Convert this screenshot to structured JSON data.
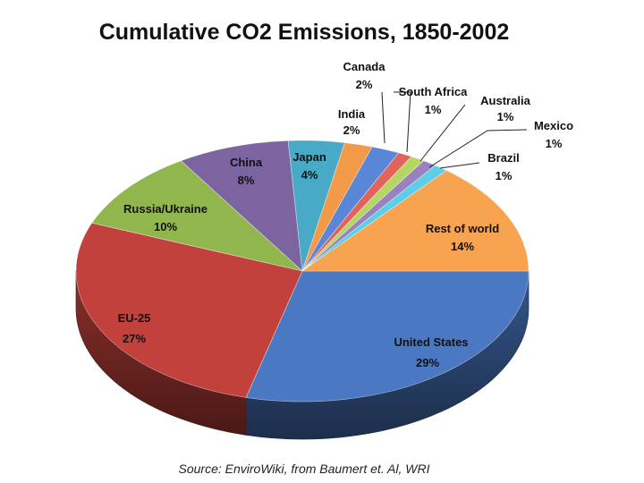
{
  "chart_data": {
    "type": "pie",
    "title": "Cumulative CO2 Emissions, 1850-2002",
    "source": "Source: EnviroWiki, from Baumert et. Al, WRI",
    "slices": [
      {
        "name": "United States",
        "pct_label": "29%",
        "value": 29,
        "color": "#4a78c2"
      },
      {
        "name": "EU-25",
        "pct_label": "27%",
        "value": 27,
        "color": "#c2413c"
      },
      {
        "name": "Russia/Ukraine",
        "pct_label": "10%",
        "value": 10,
        "color": "#92b64e"
      },
      {
        "name": "China",
        "pct_label": "8%",
        "value": 8,
        "color": "#7c64a0"
      },
      {
        "name": "Japan",
        "pct_label": "4%",
        "value": 4,
        "color": "#48aac6"
      },
      {
        "name": "India",
        "pct_label": "2%",
        "value": 2,
        "color": "#f39a48"
      },
      {
        "name": "Canada",
        "pct_label": "2%",
        "value": 2,
        "color": "#5a86d8"
      },
      {
        "name": "South Africa",
        "pct_label": "1%",
        "value": 1,
        "color": "#e2625c"
      },
      {
        "name": "Australia",
        "pct_label": "1%",
        "value": 1,
        "color": "#b6d664"
      },
      {
        "name": "Mexico",
        "pct_label": "1%",
        "value": 1,
        "color": "#9a82c0"
      },
      {
        "name": "Brazil",
        "pct_label": "1%",
        "value": 1,
        "color": "#5ccfe8"
      },
      {
        "name": "Rest of world",
        "pct_label": "14%",
        "value": 14,
        "color": "#f7a34f"
      }
    ]
  }
}
